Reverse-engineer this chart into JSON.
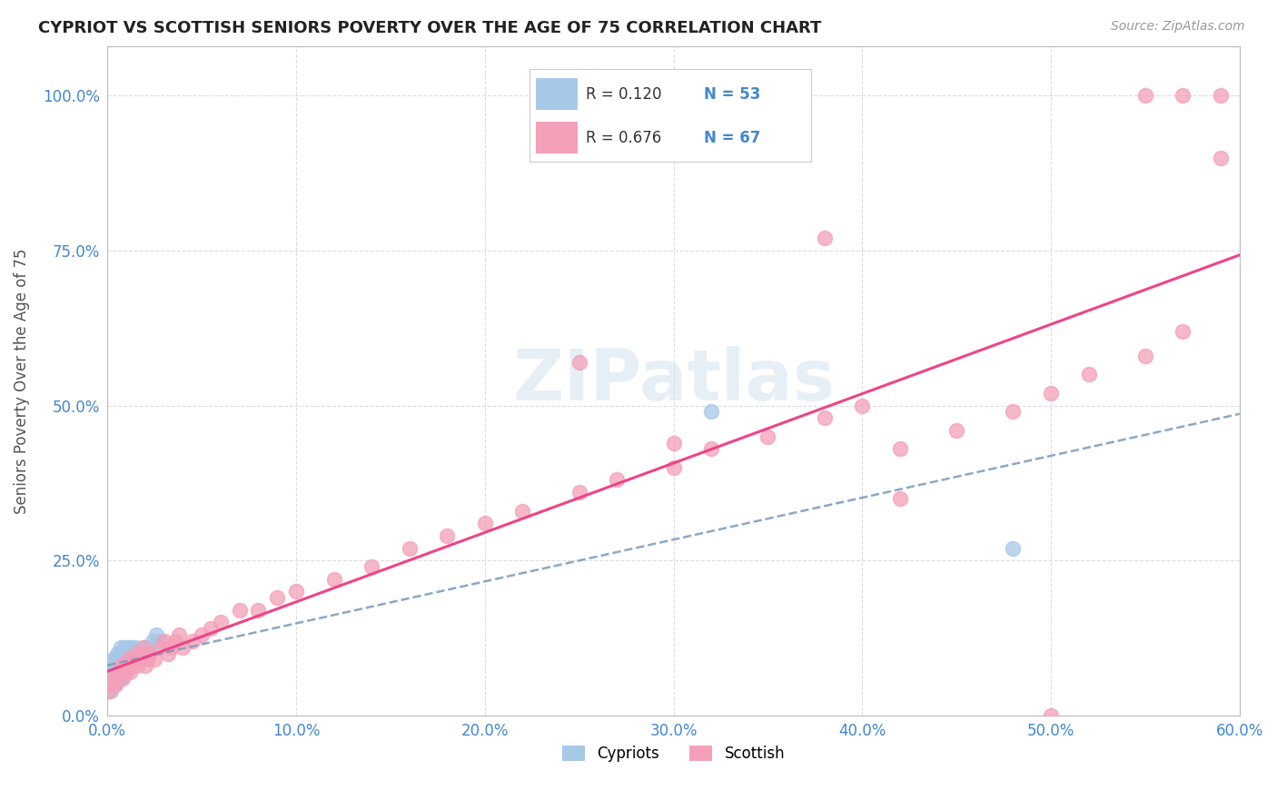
{
  "title": "CYPRIOT VS SCOTTISH SENIORS POVERTY OVER THE AGE OF 75 CORRELATION CHART",
  "source": "Source: ZipAtlas.com",
  "ylabel": "Seniors Poverty Over the Age of 75",
  "xlim": [
    0.0,
    0.6
  ],
  "ylim": [
    0.0,
    1.08
  ],
  "xticks": [
    0.0,
    0.1,
    0.2,
    0.3,
    0.4,
    0.5,
    0.6
  ],
  "yticks": [
    0.0,
    0.25,
    0.5,
    0.75,
    1.0
  ],
  "cypriot_R": 0.12,
  "cypriot_N": 53,
  "scottish_R": 0.676,
  "scottish_N": 67,
  "cypriot_color": "#a8c8e8",
  "scottish_color": "#f4a0b8",
  "cypriot_line_color": "#7799bb",
  "scottish_line_color": "#ee4488",
  "watermark": "ZIPatlas",
  "background_color": "#ffffff",
  "grid_color": "#dddddd",
  "axis_color": "#bbbbbb",
  "label_color": "#4488cc",
  "cypriot_x": [
    0.001,
    0.001,
    0.002,
    0.002,
    0.002,
    0.003,
    0.003,
    0.003,
    0.003,
    0.004,
    0.004,
    0.004,
    0.005,
    0.005,
    0.005,
    0.005,
    0.006,
    0.006,
    0.006,
    0.007,
    0.007,
    0.007,
    0.007,
    0.008,
    0.008,
    0.008,
    0.009,
    0.009,
    0.009,
    0.01,
    0.01,
    0.01,
    0.011,
    0.011,
    0.012,
    0.012,
    0.013,
    0.013,
    0.014,
    0.015,
    0.015,
    0.016,
    0.017,
    0.018,
    0.019,
    0.02,
    0.021,
    0.022,
    0.024,
    0.026,
    0.028,
    0.32,
    0.48
  ],
  "cypriot_y": [
    0.05,
    0.06,
    0.04,
    0.07,
    0.08,
    0.05,
    0.06,
    0.07,
    0.09,
    0.05,
    0.07,
    0.09,
    0.06,
    0.07,
    0.08,
    0.1,
    0.06,
    0.08,
    0.1,
    0.06,
    0.07,
    0.09,
    0.11,
    0.07,
    0.08,
    0.1,
    0.07,
    0.09,
    0.11,
    0.07,
    0.09,
    0.11,
    0.08,
    0.1,
    0.08,
    0.11,
    0.09,
    0.11,
    0.1,
    0.09,
    0.11,
    0.1,
    0.09,
    0.1,
    0.11,
    0.11,
    0.1,
    0.11,
    0.12,
    0.13,
    0.12,
    0.49,
    0.27
  ],
  "scottish_x": [
    0.001,
    0.002,
    0.003,
    0.004,
    0.005,
    0.006,
    0.007,
    0.008,
    0.009,
    0.01,
    0.011,
    0.012,
    0.013,
    0.014,
    0.015,
    0.016,
    0.017,
    0.018,
    0.019,
    0.02,
    0.021,
    0.022,
    0.025,
    0.028,
    0.03,
    0.032,
    0.034,
    0.036,
    0.038,
    0.04,
    0.045,
    0.05,
    0.055,
    0.06,
    0.07,
    0.08,
    0.09,
    0.1,
    0.12,
    0.14,
    0.16,
    0.18,
    0.2,
    0.22,
    0.25,
    0.27,
    0.3,
    0.32,
    0.35,
    0.38,
    0.4,
    0.42,
    0.45,
    0.48,
    0.5,
    0.52,
    0.55,
    0.57,
    0.59,
    0.59,
    0.57,
    0.55,
    0.25,
    0.38,
    0.3,
    0.42,
    0.5
  ],
  "scottish_y": [
    0.04,
    0.05,
    0.06,
    0.05,
    0.06,
    0.07,
    0.08,
    0.06,
    0.07,
    0.08,
    0.09,
    0.07,
    0.08,
    0.09,
    0.1,
    0.08,
    0.09,
    0.1,
    0.11,
    0.08,
    0.09,
    0.1,
    0.09,
    0.11,
    0.12,
    0.1,
    0.11,
    0.12,
    0.13,
    0.11,
    0.12,
    0.13,
    0.14,
    0.15,
    0.17,
    0.17,
    0.19,
    0.2,
    0.22,
    0.24,
    0.27,
    0.29,
    0.31,
    0.33,
    0.36,
    0.38,
    0.4,
    0.43,
    0.45,
    0.48,
    0.5,
    0.43,
    0.46,
    0.49,
    0.52,
    0.55,
    0.58,
    0.62,
    0.9,
    1.0,
    1.0,
    1.0,
    0.57,
    0.77,
    0.44,
    0.35,
    0.0
  ]
}
